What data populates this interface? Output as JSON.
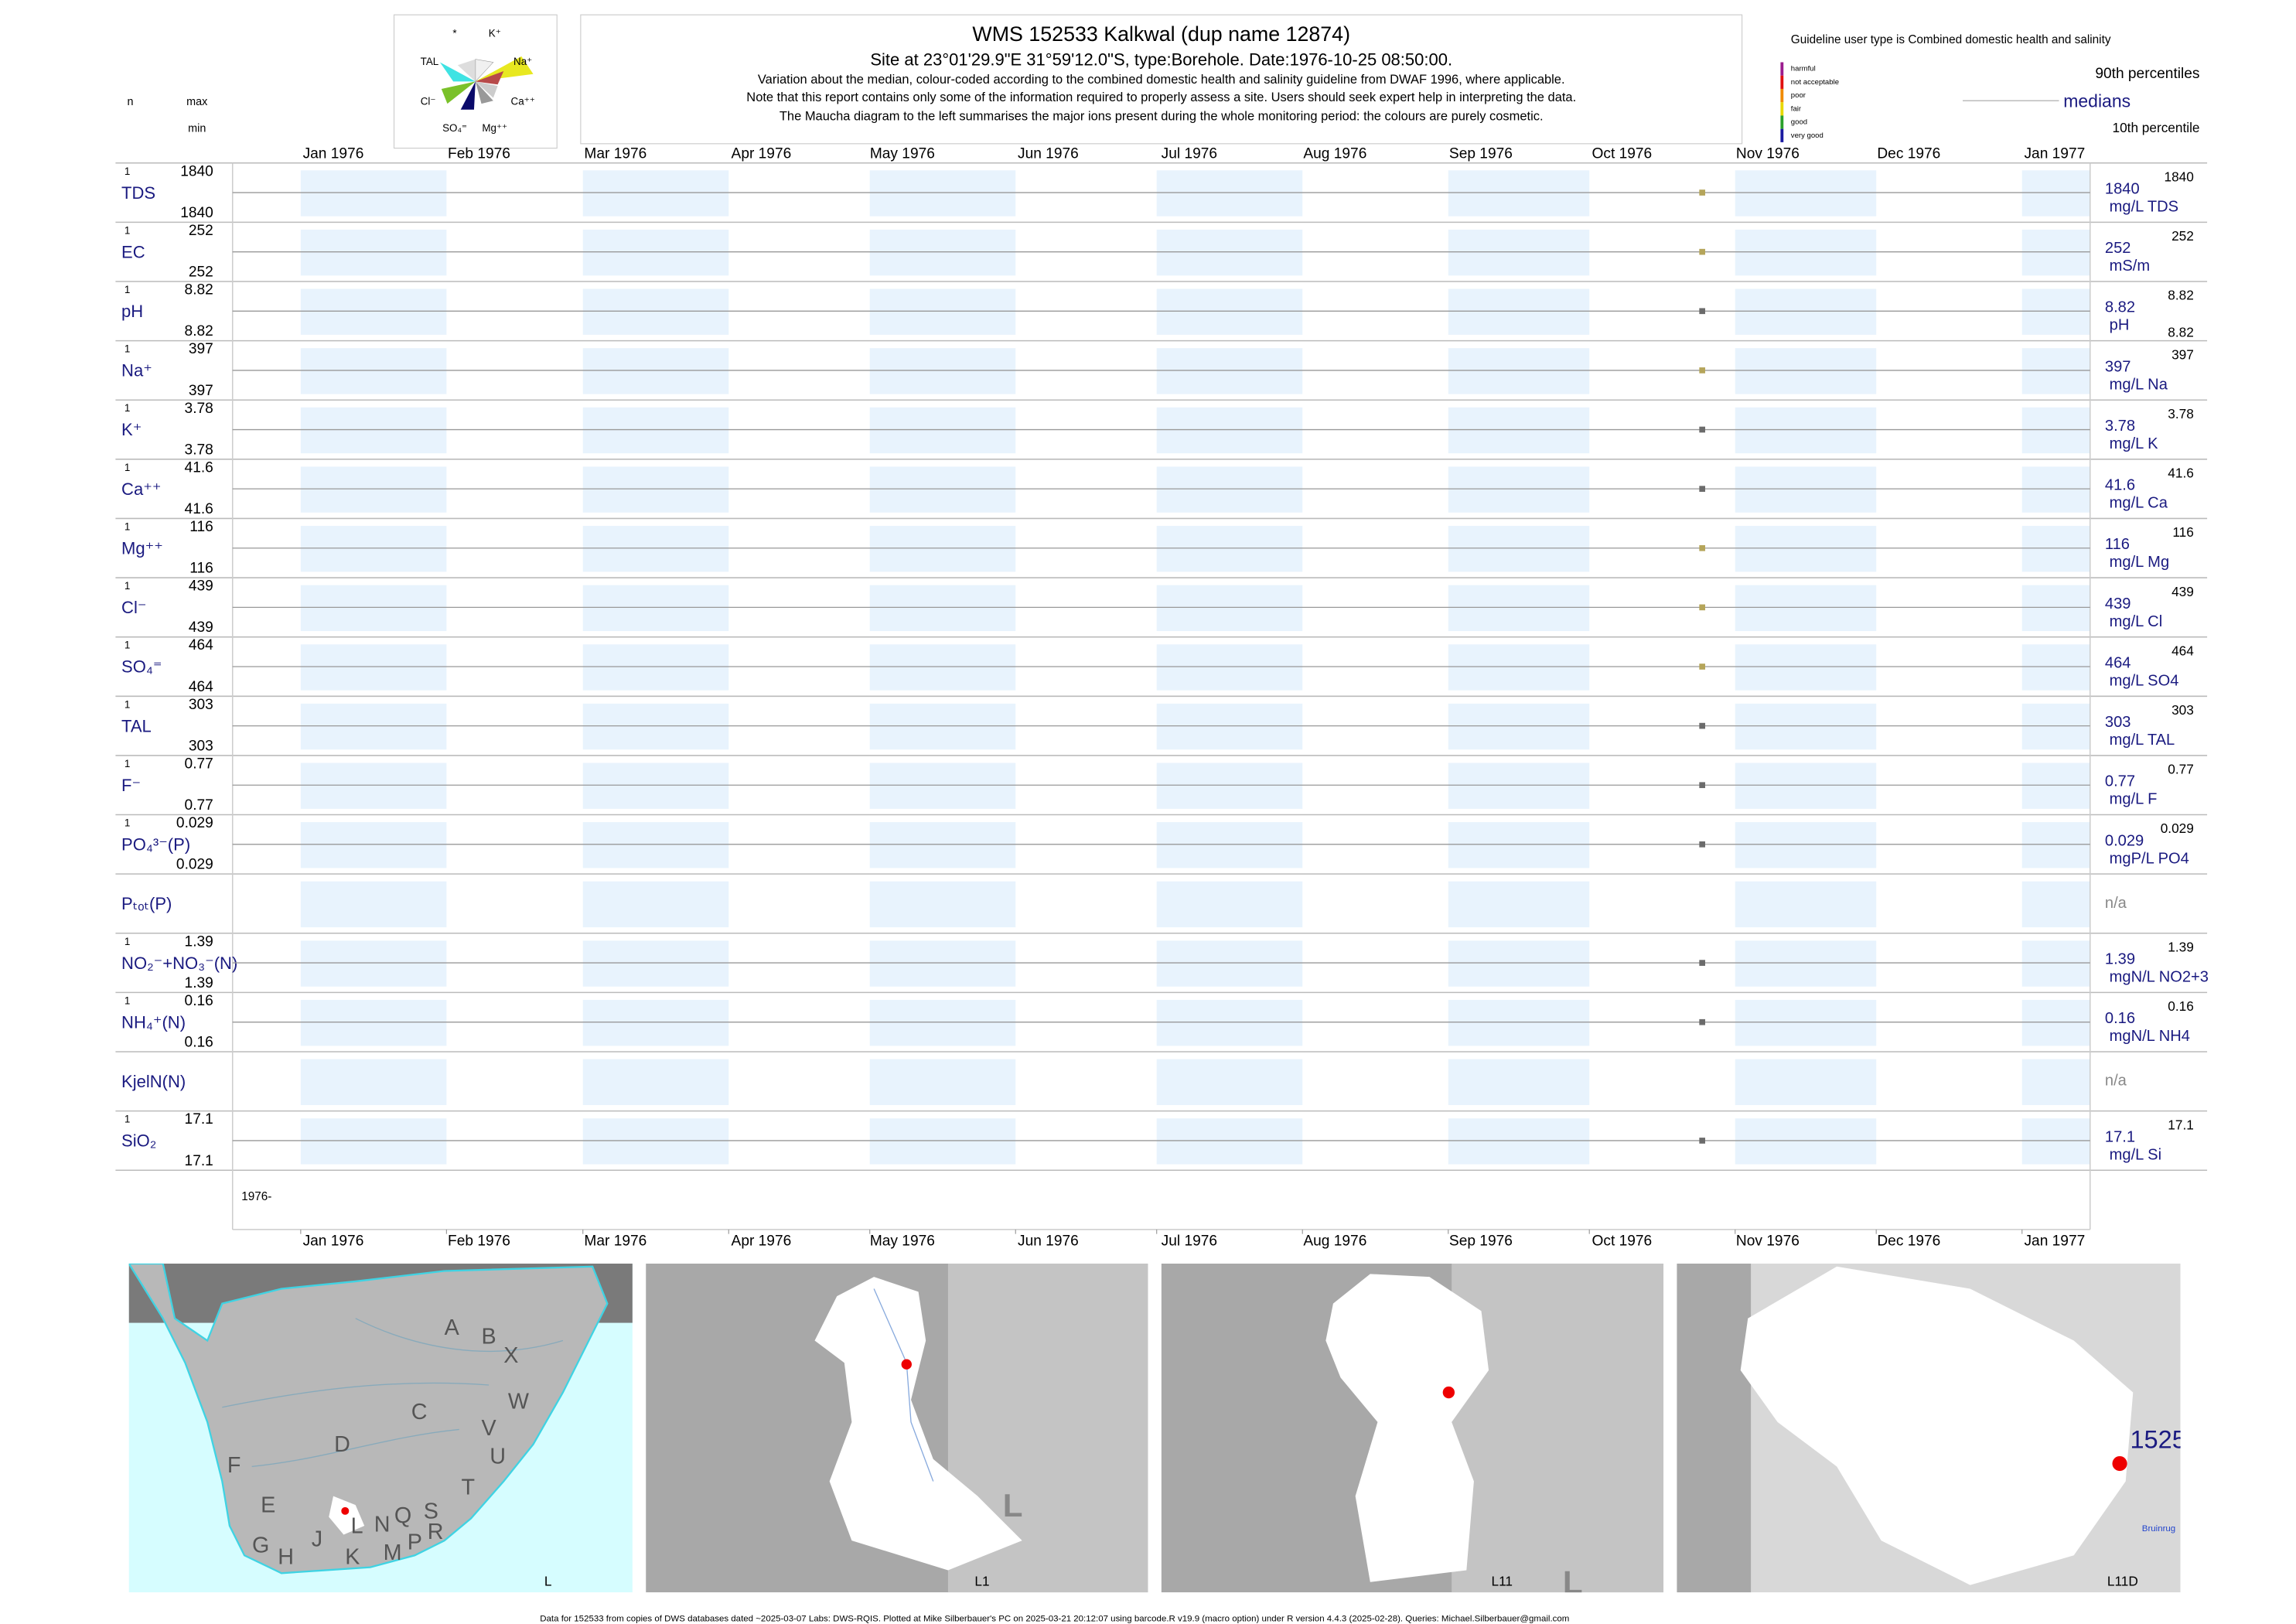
{
  "header": {
    "title": "WMS 152533  Kalkwal (dup name 12874)",
    "subtitle": "Site at 23°01'29.9\"E 31°59'12.0\"S, type:Borehole. Date:1976-10-25 08:50:00.",
    "notes": [
      "Variation about the median,  colour-coded according to the combined domestic health and salinity guideline from DWAF 1996, where applicable.",
      "Note that this report contains only some of the information required to properly assess a site. Users should seek expert help in interpreting the data.",
      "The Maucha diagram to the left summarises the major ions present during the whole monitoring period: the colours are purely cosmetic."
    ]
  },
  "maucha": {
    "labels": [
      "*",
      "K⁺",
      "TAL",
      "Na⁺",
      "Cl⁻",
      "Ca⁺⁺",
      "SO₄⁼",
      "Mg⁺⁺"
    ]
  },
  "left_header": {
    "n": "n",
    "max": "max",
    "min": "min"
  },
  "legend": {
    "title": "Guideline user type is Combined domestic health and salinity",
    "classes": [
      {
        "name": "harmful",
        "color": "#9b1b8e"
      },
      {
        "name": "not acceptable",
        "color": "#e01010"
      },
      {
        "name": "poor",
        "color": "#f08a00"
      },
      {
        "name": "fair",
        "color": "#e8d800"
      },
      {
        "name": "good",
        "color": "#2aa02a"
      },
      {
        "name": "very good",
        "color": "#1a1aa0"
      }
    ],
    "p90": "90th percentiles",
    "median": "medians",
    "p10": "10th percentile"
  },
  "chart_data": {
    "type": "strip",
    "x": [
      "1976-10-25"
    ],
    "year_label": "1976-",
    "xticks": [
      {
        "value": "1976-01",
        "label": "Jan 1976"
      },
      {
        "value": "1976-02",
        "label": "Feb 1976"
      },
      {
        "value": "1976-03",
        "label": "Mar 1976"
      },
      {
        "value": "1976-04",
        "label": "Apr 1976"
      },
      {
        "value": "1976-05",
        "label": "May 1976"
      },
      {
        "value": "1976-06",
        "label": "Jun 1976"
      },
      {
        "value": "1976-07",
        "label": "Jul 1976"
      },
      {
        "value": "1976-08",
        "label": "Aug 1976"
      },
      {
        "value": "1976-09",
        "label": "Sep 1976"
      },
      {
        "value": "1976-10",
        "label": "Oct 1976"
      },
      {
        "value": "1976-11",
        "label": "Nov 1976"
      },
      {
        "value": "1976-12",
        "label": "Dec 1976"
      },
      {
        "value": "1977-01",
        "label": "Jan 1977"
      }
    ],
    "series": [
      {
        "name": "TDS",
        "n": 1,
        "max": 1840,
        "min": 1840,
        "values": [
          1840
        ],
        "median": 1840,
        "p90": 1840,
        "unit": "mg/L TDS",
        "color": "#b5a55a"
      },
      {
        "name": "EC",
        "n": 1,
        "max": 252,
        "min": 252,
        "values": [
          252
        ],
        "median": 252,
        "p90": 252,
        "unit": "mS/m",
        "color": "#b5a55a"
      },
      {
        "name": "pH",
        "n": 1,
        "max": 8.82,
        "min": 8.82,
        "values": [
          8.82
        ],
        "median": 8.82,
        "p90": 8.82,
        "p10": 8.82,
        "unit": "pH",
        "color": "#6b6b6b"
      },
      {
        "name": "Na⁺",
        "n": 1,
        "max": 397,
        "min": 397,
        "values": [
          397
        ],
        "median": 397,
        "p90": 397,
        "unit": "mg/L Na",
        "color": "#b5a55a"
      },
      {
        "name": "K⁺",
        "n": 1,
        "max": 3.78,
        "min": 3.78,
        "values": [
          3.78
        ],
        "median": 3.78,
        "p90": 3.78,
        "unit": "mg/L K",
        "color": "#6b6b6b"
      },
      {
        "name": "Ca⁺⁺",
        "n": 1,
        "max": 41.6,
        "min": 41.6,
        "values": [
          41.6
        ],
        "median": 41.6,
        "p90": 41.6,
        "unit": "mg/L Ca",
        "color": "#6b6b6b"
      },
      {
        "name": "Mg⁺⁺",
        "n": 1,
        "max": 116,
        "min": 116,
        "values": [
          116
        ],
        "median": 116,
        "p90": 116,
        "unit": "mg/L Mg",
        "color": "#b5a55a"
      },
      {
        "name": "Cl⁻",
        "n": 1,
        "max": 439,
        "min": 439,
        "values": [
          439
        ],
        "median": 439,
        "p90": 439,
        "unit": "mg/L Cl",
        "color": "#b5a55a"
      },
      {
        "name": "SO₄⁼",
        "n": 1,
        "max": 464,
        "min": 464,
        "values": [
          464
        ],
        "median": 464,
        "p90": 464,
        "unit": "mg/L SO4",
        "color": "#b5a55a"
      },
      {
        "name": "TAL",
        "n": 1,
        "max": 303,
        "min": 303,
        "values": [
          303
        ],
        "median": 303,
        "p90": 303,
        "unit": "mg/L TAL",
        "color": "#6b6b6b"
      },
      {
        "name": "F⁻",
        "n": 1,
        "max": 0.77,
        "min": 0.77,
        "values": [
          0.77
        ],
        "median": 0.77,
        "p90": 0.77,
        "unit": "mg/L F",
        "color": "#6b6b6b"
      },
      {
        "name": "PO₄³⁻(P)",
        "n": 1,
        "max": 0.029,
        "min": 0.029,
        "values": [
          0.029
        ],
        "median": 0.029,
        "p90": 0.029,
        "unit": "mgP/L PO4",
        "color": "#6b6b6b"
      },
      {
        "name": "Pₜₒₜ(P)",
        "values": [
          null
        ],
        "median": "n/a"
      },
      {
        "name": "NO₂⁻+NO₃⁻(N)",
        "n": 1,
        "max": 1.39,
        "min": 1.39,
        "values": [
          1.39
        ],
        "median": 1.39,
        "p90": 1.39,
        "unit": "mgN/L NO2+3",
        "color": "#6b6b6b"
      },
      {
        "name": "NH₄⁺(N)",
        "n": 1,
        "max": 0.16,
        "min": 0.16,
        "values": [
          0.16
        ],
        "median": 0.16,
        "p90": 0.16,
        "unit": "mgN/L NH4",
        "color": "#6b6b6b"
      },
      {
        "name": "KjelN(N)",
        "values": [
          null
        ],
        "median": "n/a"
      },
      {
        "name": "SiO₂",
        "n": 1,
        "max": 17.1,
        "min": 17.1,
        "values": [
          17.1
        ],
        "median": 17.1,
        "p90": 17.1,
        "unit": "mg/L Si",
        "color": "#6b6b6b"
      }
    ]
  },
  "maps": {
    "labels": [
      "L",
      "L1",
      "L11",
      "L11D"
    ],
    "regions": [
      "A",
      "B",
      "X",
      "W",
      "C",
      "V",
      "U",
      "D",
      "T",
      "F",
      "E",
      "S",
      "R",
      "Q",
      "N",
      "L",
      "M",
      "P",
      "K",
      "J",
      "H",
      "G"
    ],
    "site": "1525",
    "place": "Bruinrug"
  },
  "footer": "Data for 152533 from copies of DWS databases dated ~2025-03-07 Labs: DWS-RQIS. Plotted at Mike Silberbauer's PC on 2025-03-21 20:12:07 using barcode.R v19.9 (macro option) under R version 4.4.3 (2025-02-28). Queries: Michael.Silberbauer@gmail.com"
}
